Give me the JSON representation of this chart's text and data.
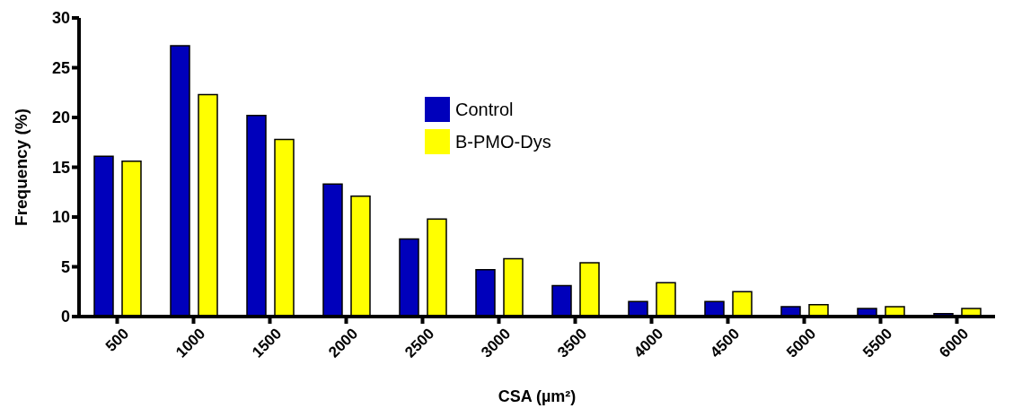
{
  "chart_data": {
    "type": "bar",
    "xlabel": "CSA (µm²)",
    "ylabel": "Frequency (%)",
    "categories": [
      "500",
      "1000",
      "1500",
      "2000",
      "2500",
      "3000",
      "3500",
      "4000",
      "4500",
      "5000",
      "5500",
      "6000"
    ],
    "series": [
      {
        "name": "Control",
        "color": "#0000bb",
        "values": [
          16.1,
          27.2,
          20.2,
          13.3,
          7.8,
          4.7,
          3.1,
          1.5,
          1.5,
          1.0,
          0.8,
          0.3
        ]
      },
      {
        "name": "B-PMO-Dys",
        "color": "#ffff00",
        "values": [
          15.6,
          22.3,
          17.8,
          12.1,
          9.8,
          5.8,
          5.4,
          3.4,
          2.5,
          1.2,
          1.0,
          0.8
        ]
      }
    ],
    "ylim": [
      0,
      30
    ],
    "yticks": [
      0,
      5,
      10,
      15,
      20,
      25,
      30
    ],
    "grid": false,
    "legend": "top"
  }
}
